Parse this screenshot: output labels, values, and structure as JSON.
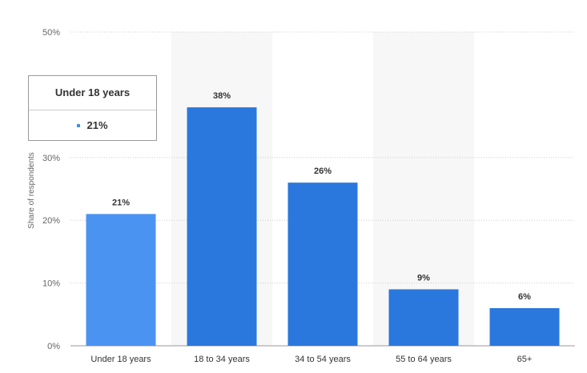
{
  "chart_data": {
    "type": "bar",
    "categories": [
      "Under 18 years",
      "18 to 34 years",
      "34 to 54 years",
      "55 to 64 years",
      "65+"
    ],
    "values": [
      21,
      38,
      26,
      9,
      6
    ],
    "data_labels": [
      "21%",
      "38%",
      "26%",
      "9%",
      "6%"
    ],
    "ylabel": "Share of respondents",
    "y_ticks": [
      "0%",
      "10%",
      "20%",
      "30%",
      "50%"
    ],
    "y_tick_values": [
      0,
      10,
      20,
      30,
      50
    ],
    "ylim": [
      0,
      50
    ],
    "grid": true,
    "highlighted_category": "Under 18 years",
    "colors": {
      "highlight_bar": "#4a93f0",
      "bar": "#2a78de",
      "band": "#f7f7f7",
      "grid": "#cccccc"
    }
  },
  "tooltip": {
    "title": "Under 18 years",
    "value": "21%"
  }
}
